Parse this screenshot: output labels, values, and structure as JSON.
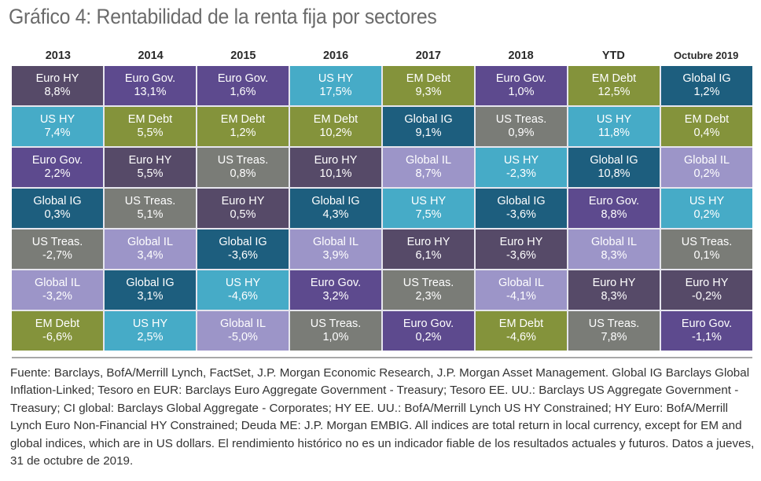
{
  "title": "Gráfico 4: Rentabilidad de la renta fija por sectores",
  "colors": {
    "Euro HY": "#564a68",
    "Euro Gov.": "#5d4a8e",
    "US HY": "#46abc7",
    "EM Debt": "#84933b",
    "Global IG": "#1d5e7e",
    "US Treas.": "#7a7c77",
    "Global IL": "#9c95c8"
  },
  "chart_data": {
    "type": "table",
    "title": "Gráfico 4: Rentabilidad de la renta fija por sectores",
    "columns": [
      "2013",
      "2014",
      "2015",
      "2016",
      "2017",
      "2018",
      "YTD",
      "Octubre 2019"
    ],
    "columns_data": [
      [
        {
          "sector": "Euro HY",
          "value": "8,8%"
        },
        {
          "sector": "US HY",
          "value": "7,4%"
        },
        {
          "sector": "Euro Gov.",
          "value": "2,2%"
        },
        {
          "sector": "Global IG",
          "value": "0,3%"
        },
        {
          "sector": "US Treas.",
          "value": "-2,7%"
        },
        {
          "sector": "Global IL",
          "value": "-3,2%"
        },
        {
          "sector": "EM Debt",
          "value": "-6,6%"
        }
      ],
      [
        {
          "sector": "Euro Gov.",
          "value": "13,1%"
        },
        {
          "sector": "EM Debt",
          "value": "5,5%"
        },
        {
          "sector": "Euro HY",
          "value": "5,5%"
        },
        {
          "sector": "US Treas.",
          "value": "5,1%"
        },
        {
          "sector": "Global IL",
          "value": "3,4%"
        },
        {
          "sector": "Global IG",
          "value": "3,1%"
        },
        {
          "sector": "US HY",
          "value": "2,5%"
        }
      ],
      [
        {
          "sector": "Euro Gov.",
          "value": "1,6%"
        },
        {
          "sector": "EM Debt",
          "value": "1,2%"
        },
        {
          "sector": "US Treas.",
          "value": "0,8%"
        },
        {
          "sector": "Euro HY",
          "value": "0,5%"
        },
        {
          "sector": "Global IG",
          "value": "-3,6%"
        },
        {
          "sector": "US HY",
          "value": "-4,6%"
        },
        {
          "sector": "Global IL",
          "value": "-5,0%"
        }
      ],
      [
        {
          "sector": "US HY",
          "value": "17,5%"
        },
        {
          "sector": "EM Debt",
          "value": "10,2%"
        },
        {
          "sector": "Euro HY",
          "value": "10,1%"
        },
        {
          "sector": "Global IG",
          "value": "4,3%"
        },
        {
          "sector": "Global IL",
          "value": "3,9%"
        },
        {
          "sector": "Euro Gov.",
          "value": "3,2%"
        },
        {
          "sector": "US Treas.",
          "value": "1,0%"
        }
      ],
      [
        {
          "sector": "EM Debt",
          "value": "9,3%"
        },
        {
          "sector": "Global IG",
          "value": "9,1%"
        },
        {
          "sector": "Global IL",
          "value": "8,7%"
        },
        {
          "sector": "US HY",
          "value": "7,5%"
        },
        {
          "sector": "Euro HY",
          "value": "6,1%"
        },
        {
          "sector": "US Treas.",
          "value": "2,3%"
        },
        {
          "sector": "Euro Gov.",
          "value": "0,2%"
        }
      ],
      [
        {
          "sector": "Euro Gov.",
          "value": "1,0%"
        },
        {
          "sector": "US Treas.",
          "value": "0,9%"
        },
        {
          "sector": "US HY",
          "value": "-2,3%"
        },
        {
          "sector": "Global IG",
          "value": "-3,6%"
        },
        {
          "sector": "Euro HY",
          "value": "-3,6%"
        },
        {
          "sector": "Global IL",
          "value": "-4,1%"
        },
        {
          "sector": "EM Debt",
          "value": "-4,6%"
        }
      ],
      [
        {
          "sector": "EM Debt",
          "value": "12,5%"
        },
        {
          "sector": "US HY",
          "value": "11,8%"
        },
        {
          "sector": "Global IG",
          "value": "10,8%"
        },
        {
          "sector": "Euro Gov.",
          "value": "8,8%"
        },
        {
          "sector": "Global IL",
          "value": "8,3%"
        },
        {
          "sector": "Euro HY",
          "value": "8,3%"
        },
        {
          "sector": "US Treas.",
          "value": "7,8%"
        }
      ],
      [
        {
          "sector": "Global IG",
          "value": "1,2%"
        },
        {
          "sector": "EM Debt",
          "value": "0,4%"
        },
        {
          "sector": "Global IL",
          "value": "0,2%"
        },
        {
          "sector": "US HY",
          "value": "0,2%"
        },
        {
          "sector": "US Treas.",
          "value": "0,1%"
        },
        {
          "sector": "Euro HY",
          "value": "-0,2%"
        },
        {
          "sector": "Euro Gov.",
          "value": "-1,1%"
        }
      ]
    ]
  },
  "footnote": "Fuente: Barclays, BofA/Merrill Lynch, FactSet, J.P. Morgan Economic Research, J.P. Morgan Asset Management. Global IG Barclays Global Inflation-Linked; Tesoro en EUR: Barclays Euro Aggregate Government - Treasury; Tesoro EE. UU.: Barclays US Aggregate Government - Treasury; CI global: Barclays Global Aggregate - Corporates; HY EE. UU.: BofA/Merrill Lynch US HY Constrained; HY Euro: BofA/Merrill Lynch Euro Non-Financial HY Constrained; Deuda ME: J.P. Morgan EMBIG. All indices are total return in local currency, except for EM and global indices, which are in US dollars. El rendimiento histórico no es un indicador fiable de los resultados actuales y futuros. Datos a jueves, 31 de octubre de 2019."
}
